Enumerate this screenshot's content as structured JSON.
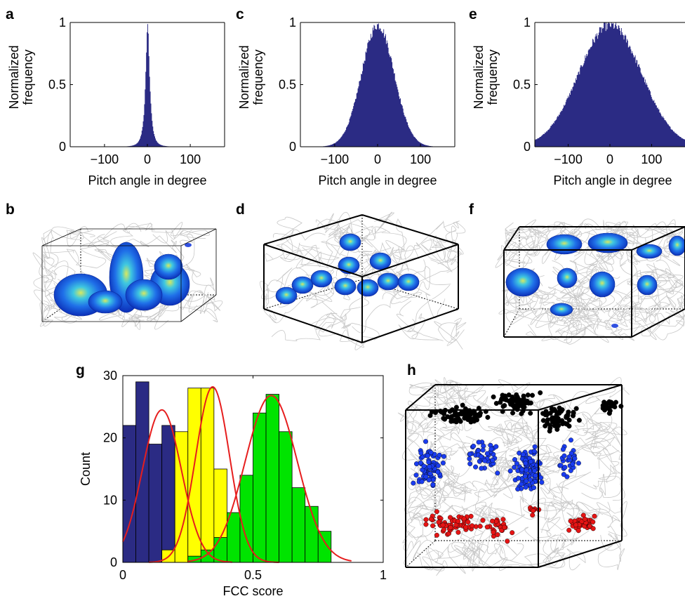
{
  "panel_labels": [
    "a",
    "b",
    "c",
    "d",
    "e",
    "f",
    "g",
    "h"
  ],
  "colors": {
    "hist_fill": "#2b2b84",
    "g_blue": "#2b2b84",
    "g_yellow": "#ffff00",
    "g_green": "#00e400",
    "fit_curve": "#e61e1e",
    "trajectory": "#c8c8c8",
    "cluster_blue": "#1a3cf0",
    "cluster_black": "#000000",
    "cluster_red": "#e61414"
  },
  "chart_data": [
    {
      "panel": "a",
      "type": "bar",
      "xlabel": "Pitch angle in degree",
      "ylabel": "Normalized frequency",
      "ylabel_lines": [
        "Normalized",
        "frequency"
      ],
      "xlim": [
        -180,
        180
      ],
      "ylim": [
        0,
        1
      ],
      "xticks": [
        -100,
        0,
        100
      ],
      "xtick_labels": [
        "−100",
        "0",
        "100"
      ],
      "yticks": [
        0,
        0.5,
        1
      ],
      "ytick_labels": [
        "0",
        "0.5",
        "1"
      ],
      "distribution": {
        "shape": "peaked",
        "center": 0,
        "width": 9,
        "peak": 1.0
      }
    },
    {
      "panel": "c",
      "type": "bar",
      "xlabel": "Pitch angle in degree",
      "ylabel": "Normalized frequency",
      "ylabel_lines": [
        "Normalized",
        "frequency"
      ],
      "xlim": [
        -180,
        180
      ],
      "ylim": [
        0,
        1
      ],
      "xticks": [
        -100,
        0,
        100
      ],
      "xtick_labels": [
        "−100",
        "0",
        "100"
      ],
      "yticks": [
        0,
        0.5,
        1
      ],
      "ytick_labels": [
        "0",
        "0.5",
        "1"
      ],
      "distribution": {
        "shape": "gaussian",
        "center": 0,
        "width": 38,
        "peak": 1.0
      }
    },
    {
      "panel": "e",
      "type": "bar",
      "xlabel": "Pitch angle in degree",
      "ylabel": "Normalized frequency",
      "ylabel_lines": [
        "Normalized",
        "frequency"
      ],
      "xlim": [
        -180,
        180
      ],
      "ylim": [
        0,
        1
      ],
      "xticks": [
        -100,
        0,
        100
      ],
      "xtick_labels": [
        "−100",
        "0",
        "100"
      ],
      "yticks": [
        0,
        0.5,
        1
      ],
      "ytick_labels": [
        "0",
        "0.5",
        "1"
      ],
      "distribution": {
        "shape": "gaussian",
        "center": 0,
        "width": 75,
        "peak": 1.0
      }
    },
    {
      "panel": "g",
      "type": "bar",
      "xlabel": "FCC score",
      "ylabel": "Count",
      "xlim": [
        0,
        1
      ],
      "ylim": [
        0,
        30
      ],
      "xticks": [
        0,
        0.5,
        1
      ],
      "xtick_labels": [
        "0",
        "0.5",
        "1"
      ],
      "yticks": [
        0,
        10,
        20,
        30
      ],
      "ytick_labels": [
        "0",
        "10",
        "20",
        "30"
      ],
      "bin_width": 0.05,
      "series": [
        {
          "bin_starts": [
            0,
            0.05,
            0.1,
            0.15
          ],
          "values": [
            22,
            29,
            19,
            22
          ]
        },
        {
          "bin_starts": [
            0.15,
            0.2,
            0.25,
            0.3,
            0.35,
            0.4
          ],
          "values": [
            2,
            21,
            28,
            28,
            15,
            3
          ]
        },
        {
          "bin_starts": [
            0.25,
            0.3,
            0.35,
            0.4,
            0.45,
            0.5,
            0.55,
            0.6,
            0.65,
            0.7,
            0.75
          ],
          "values": [
            1,
            2,
            4,
            8,
            14,
            24,
            27,
            21,
            12,
            9,
            5
          ]
        }
      ],
      "fits": [
        {
          "mean": 0.15,
          "sd": 0.075,
          "peak": 24.5,
          "range": [
            0,
            0.42
          ]
        },
        {
          "mean": 0.345,
          "sd": 0.065,
          "peak": 28.2,
          "range": [
            0.1,
            0.6
          ]
        },
        {
          "mean": 0.57,
          "sd": 0.1,
          "peak": 26.8,
          "range": [
            0.25,
            0.88
          ]
        }
      ]
    }
  ],
  "three_d_panels": [
    {
      "panel": "b",
      "description": "3D box with trajectories and blue heat blobs",
      "blob_count": 6
    },
    {
      "panel": "d",
      "description": "3D box with trajectories and ten disc-like heat blobs",
      "blob_count": 10
    },
    {
      "panel": "f",
      "description": "3D box with dense trajectories and scattered heat blobs",
      "blob_count": 9
    },
    {
      "panel": "h",
      "description": "3D box with trajectories and black, blue, red point clusters",
      "cluster_colors": [
        "black",
        "blue",
        "red"
      ]
    }
  ]
}
